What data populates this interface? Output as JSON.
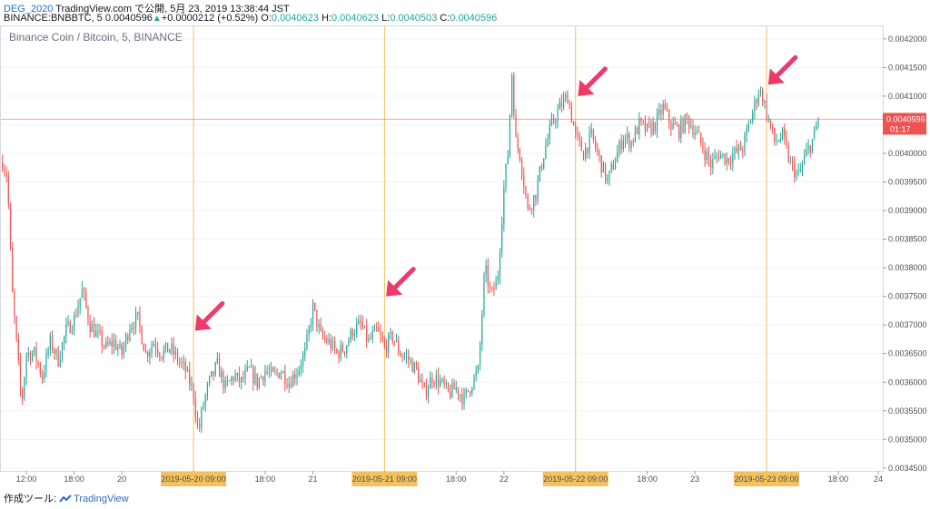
{
  "header": {
    "user": "DEG_2020",
    "published": "TradingView.com で公開, 5月 23, 2019 13:38:44 JST",
    "symbol": "BINANCE:BNBBTC, 5",
    "last": "0.0040596",
    "change_arrow": "▲",
    "change": "+0.0000212 (+0.52%)",
    "o_label": "O:",
    "o": "0.0040623",
    "h_label": "H:",
    "h": "0.0040623",
    "l_label": "L:",
    "l": "0.0040503",
    "c_label": "C:",
    "c": "0.0040596"
  },
  "footer": {
    "label": "作成ツール:",
    "brand": "TradingView",
    "icon": "tradingview-logo-icon"
  },
  "colors": {
    "up": "#26a69a",
    "down": "#ef5350",
    "vline": "#f5c15a",
    "arrow": "#ee3a6b",
    "price_tag": "#ef5350"
  },
  "chart_data": {
    "type": "candlestick",
    "title": "Binance Coin / Bitcoin, 5, BINANCE",
    "ylim": [
      0.003445,
      0.004222
    ],
    "y_ticks": [
      "0.0042000",
      "0.0041500",
      "0.0041000",
      "0.0040500",
      "0.0040000",
      "0.0039500",
      "0.0039000",
      "0.0038500",
      "0.0038000",
      "0.0037500",
      "0.0037000",
      "0.0036500",
      "0.0036000",
      "0.0035500",
      "0.0035000",
      "0.0034500"
    ],
    "x_ticks": [
      "12:00",
      "18:00",
      "20",
      "2019-05-20  09:00",
      "18:00",
      "21",
      "2019-05-21  09:00",
      "18:00",
      "22",
      "2019-05-22  09:00",
      "18:00",
      "23",
      "2019-05-23  09:00",
      "18:00",
      "24"
    ],
    "x_ticks_highlighted": [
      "2019-05-20  09:00",
      "2019-05-21  09:00",
      "2019-05-22  09:00",
      "2019-05-23  09:00"
    ],
    "x_range_hours": [
      -15.2,
      95.6
    ],
    "vertical_lines_hours": [
      9,
      33,
      57,
      81
    ],
    "current_price": "0.0040596",
    "countdown": "01:17",
    "series": [
      {
        "values": [
          {
            "t": -15.0,
            "p": 0.003985
          },
          {
            "t": -14.4,
            "p": 0.00396
          },
          {
            "t": -13.8,
            "p": 0.00376
          },
          {
            "t": -13.2,
            "p": 0.00366
          },
          {
            "t": -12.6,
            "p": 0.00356
          },
          {
            "t": -12.0,
            "p": 0.00365
          },
          {
            "t": -11.0,
            "p": 0.00365
          },
          {
            "t": -10.0,
            "p": 0.00361
          },
          {
            "t": -9.0,
            "p": 0.00367
          },
          {
            "t": -8.0,
            "p": 0.00364
          },
          {
            "t": -7.0,
            "p": 0.00369
          },
          {
            "t": -6.0,
            "p": 0.00371
          },
          {
            "t": -5.0,
            "p": 0.00376
          },
          {
            "t": -4.0,
            "p": 0.0037
          },
          {
            "t": -3.0,
            "p": 0.00368
          },
          {
            "t": -2.0,
            "p": 0.00366
          },
          {
            "t": -1.0,
            "p": 0.00367
          },
          {
            "t": 0.0,
            "p": 0.00365
          },
          {
            "t": 1.0,
            "p": 0.0037
          },
          {
            "t": 2.0,
            "p": 0.00371
          },
          {
            "t": 3.0,
            "p": 0.00365
          },
          {
            "t": 4.0,
            "p": 0.00367
          },
          {
            "t": 5.0,
            "p": 0.00365
          },
          {
            "t": 6.0,
            "p": 0.00366
          },
          {
            "t": 7.0,
            "p": 0.00364
          },
          {
            "t": 8.0,
            "p": 0.00362
          },
          {
            "t": 9.0,
            "p": 0.00358
          },
          {
            "t": 9.6,
            "p": 0.00351
          },
          {
            "t": 10.2,
            "p": 0.00356
          },
          {
            "t": 11.0,
            "p": 0.0036
          },
          {
            "t": 12.0,
            "p": 0.00363
          },
          {
            "t": 13.0,
            "p": 0.00359
          },
          {
            "t": 14.0,
            "p": 0.00361
          },
          {
            "t": 15.0,
            "p": 0.0036
          },
          {
            "t": 16.0,
            "p": 0.00362
          },
          {
            "t": 17.0,
            "p": 0.0036
          },
          {
            "t": 18.0,
            "p": 0.00362
          },
          {
            "t": 19.0,
            "p": 0.00361
          },
          {
            "t": 20.0,
            "p": 0.00362
          },
          {
            "t": 21.0,
            "p": 0.0036
          },
          {
            "t": 22.0,
            "p": 0.00362
          },
          {
            "t": 23.0,
            "p": 0.00365
          },
          {
            "t": 24.0,
            "p": 0.00373
          },
          {
            "t": 25.0,
            "p": 0.00368
          },
          {
            "t": 26.0,
            "p": 0.00367
          },
          {
            "t": 27.0,
            "p": 0.00365
          },
          {
            "t": 28.0,
            "p": 0.00366
          },
          {
            "t": 29.0,
            "p": 0.00369
          },
          {
            "t": 30.0,
            "p": 0.0037
          },
          {
            "t": 31.0,
            "p": 0.00367
          },
          {
            "t": 32.0,
            "p": 0.00369
          },
          {
            "t": 33.0,
            "p": 0.00366
          },
          {
            "t": 34.0,
            "p": 0.00368
          },
          {
            "t": 35.0,
            "p": 0.00365
          },
          {
            "t": 36.0,
            "p": 0.00364
          },
          {
            "t": 37.0,
            "p": 0.00362
          },
          {
            "t": 38.0,
            "p": 0.00358
          },
          {
            "t": 39.0,
            "p": 0.00361
          },
          {
            "t": 40.0,
            "p": 0.0036
          },
          {
            "t": 41.0,
            "p": 0.00358
          },
          {
            "t": 42.0,
            "p": 0.00359
          },
          {
            "t": 43.0,
            "p": 0.00357
          },
          {
            "t": 44.0,
            "p": 0.0036
          },
          {
            "t": 44.8,
            "p": 0.00362
          },
          {
            "t": 45.6,
            "p": 0.0038
          },
          {
            "t": 46.4,
            "p": 0.00375
          },
          {
            "t": 47.2,
            "p": 0.00378
          },
          {
            "t": 48.0,
            "p": 0.00394
          },
          {
            "t": 48.5,
            "p": 0.004
          },
          {
            "t": 49.0,
            "p": 0.00414
          },
          {
            "t": 49.5,
            "p": 0.00402
          },
          {
            "t": 50.0,
            "p": 0.004
          },
          {
            "t": 51.0,
            "p": 0.0039
          },
          {
            "t": 52.0,
            "p": 0.00393
          },
          {
            "t": 53.0,
            "p": 0.004
          },
          {
            "t": 54.0,
            "p": 0.00405
          },
          {
            "t": 55.0,
            "p": 0.00408
          },
          {
            "t": 56.0,
            "p": 0.0041
          },
          {
            "t": 57.0,
            "p": 0.00403
          },
          {
            "t": 58.0,
            "p": 0.004
          },
          {
            "t": 59.0,
            "p": 0.00403
          },
          {
            "t": 60.0,
            "p": 0.00399
          },
          {
            "t": 61.0,
            "p": 0.00395
          },
          {
            "t": 62.0,
            "p": 0.00399
          },
          {
            "t": 63.0,
            "p": 0.00403
          },
          {
            "t": 64.0,
            "p": 0.00402
          },
          {
            "t": 65.0,
            "p": 0.00405
          },
          {
            "t": 66.0,
            "p": 0.00404
          },
          {
            "t": 67.0,
            "p": 0.00405
          },
          {
            "t": 68.0,
            "p": 0.00408
          },
          {
            "t": 69.0,
            "p": 0.00405
          },
          {
            "t": 70.0,
            "p": 0.00404
          },
          {
            "t": 71.0,
            "p": 0.00406
          },
          {
            "t": 72.0,
            "p": 0.00404
          },
          {
            "t": 73.0,
            "p": 0.00401
          },
          {
            "t": 74.0,
            "p": 0.00398
          },
          {
            "t": 75.0,
            "p": 0.004
          },
          {
            "t": 76.0,
            "p": 0.00399
          },
          {
            "t": 77.0,
            "p": 0.004
          },
          {
            "t": 78.0,
            "p": 0.00401
          },
          {
            "t": 79.0,
            "p": 0.00406
          },
          {
            "t": 80.0,
            "p": 0.00411
          },
          {
            "t": 80.5,
            "p": 0.0041
          },
          {
            "t": 81.0,
            "p": 0.00407
          },
          {
            "t": 82.0,
            "p": 0.00402
          },
          {
            "t": 83.0,
            "p": 0.00403
          },
          {
            "t": 84.0,
            "p": 0.00398
          },
          {
            "t": 85.0,
            "p": 0.00396
          },
          {
            "t": 86.0,
            "p": 0.004
          },
          {
            "t": 87.0,
            "p": 0.00403
          },
          {
            "t": 87.5,
            "p": 0.0040596
          }
        ]
      }
    ],
    "annotations": [
      {
        "type": "arrow",
        "at_hours": 9.2,
        "at_price": 0.00369
      },
      {
        "type": "arrow",
        "at_hours": 33.2,
        "at_price": 0.00375
      },
      {
        "type": "arrow",
        "at_hours": 57.3,
        "at_price": 0.0041
      },
      {
        "type": "arrow",
        "at_hours": 81.2,
        "at_price": 0.00412
      }
    ]
  }
}
